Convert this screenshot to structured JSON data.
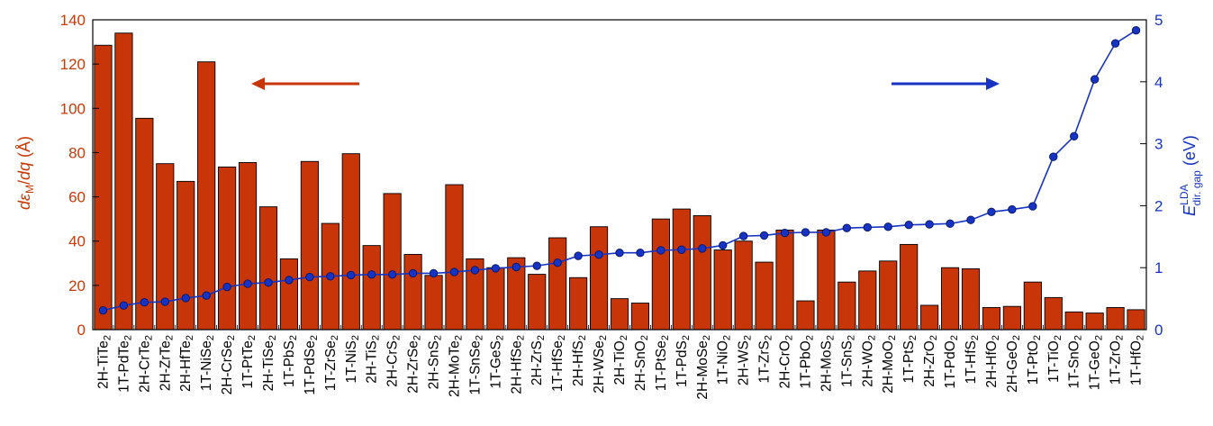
{
  "chart_data": {
    "type": "bar",
    "categories": [
      "2H-TiTe2",
      "1T-PdTe2",
      "2H-CrTe2",
      "2H-ZrTe2",
      "2H-HfTe2",
      "1T-NiSe2",
      "2H-CrSe2",
      "1T-PtTe2",
      "2H-TiSe2",
      "1T-PbS2",
      "1T-PdSe2",
      "1T-ZrSe2",
      "1T-NiS2",
      "2H-TiS2",
      "2H-CrS2",
      "2H-ZrSe2",
      "2H-SnS2",
      "2H-MoTe2",
      "1T-SnSe2",
      "1T-GeS2",
      "2H-HfSe2",
      "2H-ZrS2",
      "1T-HfSe2",
      "2H-HfS2",
      "2H-WSe2",
      "2H-TiO2",
      "2H-SnO2",
      "1T-PtSe2",
      "1T-PdS2",
      "2H-MoSe2",
      "1T-NiO2",
      "2H-WS2",
      "1T-ZrS2",
      "2H-CrO2",
      "1T-PbO2",
      "2H-MoS2",
      "1T-SnS2",
      "2H-WO2",
      "2H-MoO2",
      "1T-PtS2",
      "2H-ZrO2",
      "1T-PdO2",
      "1T-HfS2",
      "2H-HfO2",
      "2H-GeO2",
      "1T-PtO2",
      "1T-TiO2",
      "1T-SnO2",
      "1T-GeO2",
      "1T-ZrO2",
      "1T-HfO2"
    ],
    "series": [
      {
        "axis": "left",
        "color": "#c83508",
        "values": [
          128.5,
          134,
          95.5,
          75,
          67,
          121,
          73.5,
          75.5,
          55.5,
          32,
          76,
          48,
          79.5,
          38,
          61.5,
          34,
          24.5,
          65.5,
          32,
          28,
          32.5,
          25,
          41.5,
          23.5,
          46.5,
          14,
          12,
          50,
          54.5,
          51.5,
          36,
          40,
          30.5,
          45,
          13,
          45,
          21.5,
          26.5,
          31,
          38.5,
          11,
          28,
          27.5,
          10,
          10.5,
          21.5,
          14.5,
          8,
          7.5,
          10,
          9
        ]
      },
      {
        "axis": "right",
        "color": "#1633c4",
        "values": [
          0.31,
          0.39,
          0.44,
          0.45,
          0.51,
          0.55,
          0.69,
          0.74,
          0.76,
          0.8,
          0.85,
          0.86,
          0.88,
          0.89,
          0.89,
          0.91,
          0.91,
          0.93,
          0.96,
          0.99,
          1.01,
          1.03,
          1.08,
          1.19,
          1.21,
          1.24,
          1.24,
          1.28,
          1.29,
          1.31,
          1.36,
          1.51,
          1.52,
          1.56,
          1.57,
          1.57,
          1.64,
          1.65,
          1.66,
          1.69,
          1.7,
          1.71,
          1.77,
          1.9,
          1.94,
          1.99,
          2.79,
          3.12,
          4.04,
          4.62,
          4.83
        ]
      }
    ],
    "yleft": {
      "ylim": [
        0,
        140
      ],
      "ticks": [
        "0",
        "20",
        "40",
        "60",
        "80",
        "100",
        "120",
        "140"
      ]
    },
    "yright": {
      "ylim": [
        0,
        5
      ],
      "ticks": [
        "0",
        "1",
        "2",
        "3",
        "4",
        "5"
      ]
    },
    "annotations": {
      "left_arrow_color": "#c83508",
      "right_arrow_color": "#1633c4"
    }
  }
}
